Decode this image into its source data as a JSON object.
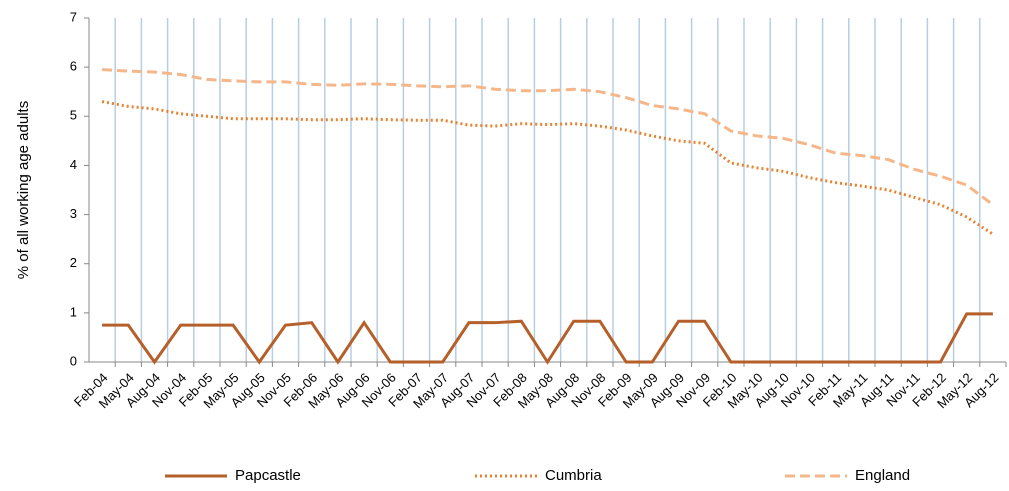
{
  "chart_data": {
    "type": "line",
    "y_label": "% of all working age adults",
    "categories": [
      "Feb-04",
      "May-04",
      "Aug-04",
      "Nov-04",
      "Feb-05",
      "May-05",
      "Aug-05",
      "Nov-05",
      "Feb-06",
      "May-06",
      "Aug-06",
      "Nov-06",
      "Feb-07",
      "May-07",
      "Aug-07",
      "Nov-07",
      "Feb-08",
      "May-08",
      "Aug-08",
      "Nov-08",
      "Feb-09",
      "May-09",
      "Aug-09",
      "Nov-09",
      "Feb-10",
      "May-10",
      "Aug-10",
      "Nov-10",
      "Feb-11",
      "May-11",
      "Aug-11",
      "Nov-11",
      "Feb-12",
      "May-12",
      "Aug-12"
    ],
    "series": [
      {
        "name": "Papcastle",
        "color": "#b5602a",
        "dash": "solid",
        "values": [
          0.75,
          0.75,
          0,
          0.75,
          0.75,
          0.75,
          0,
          0.75,
          0.8,
          0,
          0.8,
          0,
          0,
          0,
          0.8,
          0.8,
          0.83,
          0,
          0.83,
          0.83,
          0,
          0,
          0.83,
          0.83,
          0,
          0,
          0,
          0,
          0,
          0,
          0,
          0,
          0,
          0.98,
          0.98
        ]
      },
      {
        "name": "Cumbria",
        "color": "#e8822e",
        "dash": "dotted",
        "values": [
          5.3,
          5.2,
          5.15,
          5.05,
          5.0,
          4.95,
          4.95,
          4.95,
          4.93,
          4.93,
          4.95,
          4.93,
          4.92,
          4.92,
          4.82,
          4.8,
          4.85,
          4.83,
          4.85,
          4.8,
          4.72,
          4.6,
          4.5,
          4.45,
          4.05,
          3.95,
          3.88,
          3.75,
          3.65,
          3.58,
          3.5,
          3.35,
          3.2,
          2.95,
          2.6
        ]
      },
      {
        "name": "England",
        "color": "#f5b78a",
        "dash": "dashed",
        "values": [
          5.95,
          5.92,
          5.9,
          5.85,
          5.75,
          5.72,
          5.7,
          5.7,
          5.65,
          5.63,
          5.66,
          5.65,
          5.62,
          5.6,
          5.62,
          5.55,
          5.52,
          5.52,
          5.55,
          5.5,
          5.38,
          5.22,
          5.15,
          5.05,
          4.7,
          4.6,
          4.55,
          4.42,
          4.25,
          4.2,
          4.12,
          3.92,
          3.78,
          3.6,
          3.2
        ]
      }
    ],
    "ylim": [
      0,
      7
    ],
    "yticks": [
      0,
      1,
      2,
      3,
      4,
      5,
      6,
      7
    ],
    "grid": "vertical",
    "legend": "bottom"
  }
}
